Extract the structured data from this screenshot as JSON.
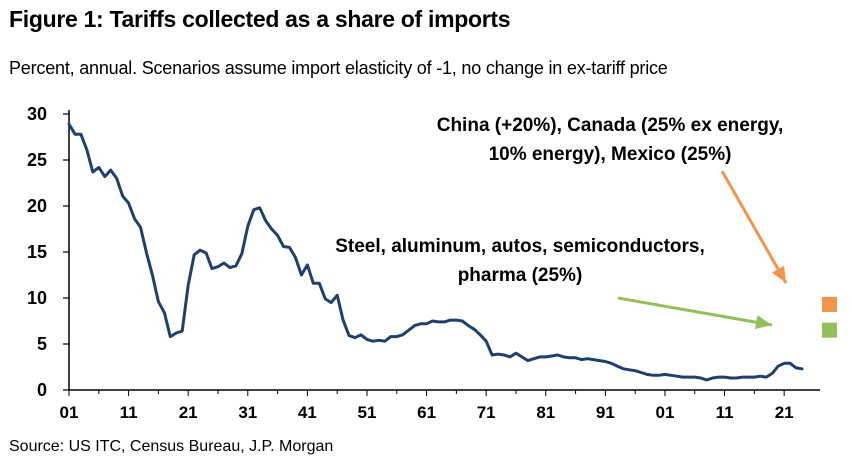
{
  "title": "Figure 1: Tariffs collected as a share of imports",
  "subtitle": "Percent, annual. Scenarios assume import elasticity of -1, no change in ex-tariff price",
  "source": "Source: US ITC, Census Bureau, J.P. Morgan",
  "colors": {
    "line": "#1f3f6e",
    "scenario_orange": "#f0954a",
    "scenario_green": "#93bf58",
    "arrow_orange": "#f0954a",
    "arrow_green": "#93bf58"
  },
  "chart_data": {
    "type": "line",
    "title": "Figure 1: Tariffs collected as a share of imports",
    "xlabel": "",
    "ylabel": "",
    "ylim": [
      0,
      30
    ],
    "xlim": [
      1901,
      2025
    ],
    "yticks": [
      "0",
      "5",
      "10",
      "15",
      "20",
      "25",
      "30"
    ],
    "xticks": [
      "01",
      "11",
      "21",
      "31",
      "41",
      "51",
      "61",
      "71",
      "81",
      "91",
      "01",
      "11",
      "21"
    ],
    "xtick_years": [
      1901,
      1911,
      1921,
      1931,
      1941,
      1951,
      1961,
      1971,
      1981,
      1991,
      2001,
      2011,
      2021
    ],
    "grid": false,
    "series": [
      {
        "x": [
          1901,
          1902,
          1903,
          1904,
          1905,
          1906,
          1907,
          1908,
          1909,
          1910,
          1911,
          1912,
          1913,
          1914,
          1915,
          1916,
          1917,
          1918,
          1919,
          1920,
          1921,
          1922,
          1923,
          1924,
          1925,
          1926,
          1927,
          1928,
          1929,
          1930,
          1931,
          1932,
          1933,
          1934,
          1935,
          1936,
          1937,
          1938,
          1939,
          1940,
          1941,
          1942,
          1943,
          1944,
          1945,
          1946,
          1947,
          1948,
          1949,
          1950,
          1951,
          1952,
          1953,
          1954,
          1955,
          1956,
          1957,
          1958,
          1959,
          1960,
          1961,
          1962,
          1963,
          1964,
          1965,
          1966,
          1967,
          1968,
          1969,
          1970,
          1971,
          1972,
          1973,
          1974,
          1975,
          1976,
          1977,
          1978,
          1979,
          1980,
          1981,
          1982,
          1983,
          1984,
          1985,
          1986,
          1987,
          1988,
          1989,
          1990,
          1991,
          1992,
          1993,
          1994,
          1995,
          1996,
          1997,
          1998,
          1999,
          2000,
          2001,
          2002,
          2003,
          2004,
          2005,
          2006,
          2007,
          2008,
          2009,
          2010,
          2011,
          2012,
          2013,
          2014,
          2015,
          2016,
          2017,
          2018,
          2019,
          2020,
          2021,
          2022,
          2023,
          2024
        ],
        "values": [
          28.9,
          27.8,
          27.8,
          26.1,
          23.7,
          24.2,
          23.2,
          23.9,
          23.0,
          21.1,
          20.3,
          18.6,
          17.7,
          14.9,
          12.5,
          9.6,
          8.4,
          5.8,
          6.2,
          6.4,
          11.4,
          14.7,
          15.2,
          14.9,
          13.2,
          13.4,
          13.8,
          13.3,
          13.5,
          14.8,
          17.8,
          19.6,
          19.8,
          18.4,
          17.5,
          16.8,
          15.6,
          15.5,
          14.4,
          12.5,
          13.6,
          11.6,
          11.6,
          9.9,
          9.5,
          10.3,
          7.6,
          5.9,
          5.7,
          6.0,
          5.5,
          5.3,
          5.4,
          5.3,
          5.8,
          5.8,
          6.0,
          6.5,
          7.0,
          7.2,
          7.2,
          7.5,
          7.4,
          7.4,
          7.6,
          7.6,
          7.5,
          7.0,
          6.6,
          6.0,
          5.3,
          3.8,
          3.9,
          3.8,
          3.6,
          4.0,
          3.6,
          3.2,
          3.4,
          3.6,
          3.6,
          3.7,
          3.8,
          3.6,
          3.5,
          3.5,
          3.3,
          3.4,
          3.3,
          3.2,
          3.1,
          2.9,
          2.6,
          2.3,
          2.2,
          2.1,
          1.9,
          1.7,
          1.6,
          1.6,
          1.7,
          1.6,
          1.5,
          1.4,
          1.4,
          1.4,
          1.3,
          1.1,
          1.3,
          1.4,
          1.4,
          1.3,
          1.3,
          1.4,
          1.4,
          1.4,
          1.5,
          1.4,
          1.8,
          2.6,
          2.9,
          2.9,
          2.4,
          2.3
        ]
      }
    ],
    "scenarios": [
      {
        "label_lines": [
          "China (+20%), Canada (25% ex energy,",
          "10% energy), Mexico (25%)"
        ],
        "x": 2028.6,
        "value": 9.3,
        "color": "#f0954a"
      },
      {
        "label_lines": [
          "Steel, aluminum, autos, semiconductors,",
          "pharma (25%)"
        ],
        "x": 2028.6,
        "value": 6.5,
        "color": "#93bf58"
      }
    ]
  }
}
